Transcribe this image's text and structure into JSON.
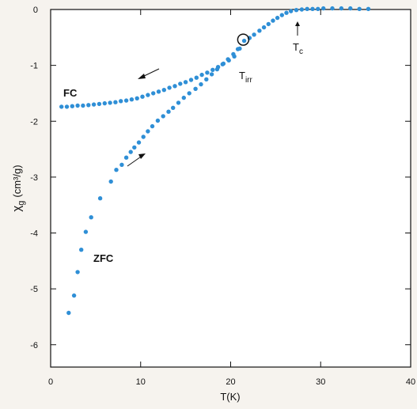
{
  "chart_data": {
    "type": "scatter",
    "title": "",
    "xlabel": "T(K)",
    "ylabel_main": "χ",
    "ylabel_sub": "g",
    "ylabel_unit": "(cm³/g)",
    "xlim": [
      0,
      40
    ],
    "ylim": [
      -6.4,
      0
    ],
    "x_ticks": [
      0,
      10,
      20,
      30,
      40
    ],
    "x_tick_labels": [
      "0",
      "10",
      "20",
      "30",
      "40"
    ],
    "y_ticks": [
      0,
      -1,
      -2,
      -3,
      -4,
      -5,
      -6
    ],
    "y_tick_labels": [
      "0",
      "-1",
      "-2",
      "-3",
      "-4",
      "-5",
      "-6"
    ],
    "marker_color": "#2f8fd6",
    "series": [
      {
        "name": "FC",
        "points": [
          [
            1.2,
            -1.74
          ],
          [
            1.8,
            -1.74
          ],
          [
            2.4,
            -1.73
          ],
          [
            3.0,
            -1.72
          ],
          [
            3.6,
            -1.72
          ],
          [
            4.2,
            -1.71
          ],
          [
            4.8,
            -1.7
          ],
          [
            5.4,
            -1.69
          ],
          [
            6.0,
            -1.68
          ],
          [
            6.6,
            -1.67
          ],
          [
            7.2,
            -1.66
          ],
          [
            7.8,
            -1.64
          ],
          [
            8.4,
            -1.63
          ],
          [
            9.0,
            -1.61
          ],
          [
            9.6,
            -1.59
          ],
          [
            10.2,
            -1.56
          ],
          [
            10.8,
            -1.53
          ],
          [
            11.4,
            -1.5
          ],
          [
            12.0,
            -1.47
          ],
          [
            12.6,
            -1.44
          ],
          [
            13.2,
            -1.4
          ],
          [
            13.8,
            -1.37
          ],
          [
            14.4,
            -1.33
          ],
          [
            15.0,
            -1.3
          ],
          [
            15.6,
            -1.26
          ],
          [
            16.2,
            -1.22
          ],
          [
            16.8,
            -1.17
          ],
          [
            17.4,
            -1.13
          ],
          [
            18.0,
            -1.08
          ],
          [
            18.6,
            -1.03
          ],
          [
            19.2,
            -0.97
          ],
          [
            19.8,
            -0.91
          ],
          [
            20.4,
            -0.84
          ],
          [
            21.0,
            -0.7
          ]
        ]
      },
      {
        "name": "ZFC",
        "points": [
          [
            2.0,
            -5.43
          ],
          [
            2.6,
            -5.12
          ],
          [
            3.0,
            -4.7
          ],
          [
            3.4,
            -4.3
          ],
          [
            3.9,
            -3.98
          ],
          [
            4.5,
            -3.72
          ],
          [
            5.5,
            -3.38
          ],
          [
            6.7,
            -3.08
          ],
          [
            7.3,
            -2.87
          ],
          [
            7.9,
            -2.78
          ],
          [
            8.4,
            -2.65
          ],
          [
            8.9,
            -2.55
          ],
          [
            9.3,
            -2.47
          ],
          [
            9.8,
            -2.38
          ],
          [
            10.3,
            -2.28
          ],
          [
            10.8,
            -2.18
          ],
          [
            11.3,
            -2.09
          ],
          [
            11.9,
            -1.99
          ],
          [
            12.5,
            -1.91
          ],
          [
            13.1,
            -1.83
          ],
          [
            13.6,
            -1.76
          ],
          [
            14.2,
            -1.67
          ],
          [
            14.8,
            -1.58
          ],
          [
            15.4,
            -1.5
          ],
          [
            16.1,
            -1.42
          ],
          [
            16.7,
            -1.34
          ],
          [
            17.3,
            -1.25
          ],
          [
            17.9,
            -1.16
          ],
          [
            18.5,
            -1.07
          ],
          [
            19.1,
            -0.98
          ],
          [
            19.7,
            -0.89
          ],
          [
            20.3,
            -0.8
          ],
          [
            20.8,
            -0.71
          ]
        ]
      },
      {
        "name": "",
        "points": [
          [
            21.5,
            -0.56
          ],
          [
            22.1,
            -0.51
          ],
          [
            22.6,
            -0.45
          ],
          [
            23.2,
            -0.38
          ],
          [
            23.7,
            -0.32
          ],
          [
            24.2,
            -0.26
          ],
          [
            24.7,
            -0.2
          ],
          [
            25.2,
            -0.15
          ],
          [
            25.7,
            -0.1
          ],
          [
            26.2,
            -0.06
          ],
          [
            26.7,
            -0.03
          ],
          [
            27.3,
            -0.01
          ],
          [
            27.9,
            0.0
          ],
          [
            28.5,
            0.01
          ],
          [
            29.1,
            0.01
          ],
          [
            29.7,
            0.01
          ],
          [
            30.3,
            0.02
          ],
          [
            31.3,
            0.02
          ],
          [
            32.3,
            0.02
          ],
          [
            33.3,
            0.02
          ],
          [
            34.3,
            0.01
          ],
          [
            35.3,
            0.01
          ]
        ]
      }
    ],
    "annotations": {
      "fc_label": "FC",
      "zfc_label": "ZFC",
      "tirr_main": "T",
      "tirr_sub": "irr",
      "tc_main": "T",
      "tc_sub": "c",
      "tirr_point": [
        21.4,
        -0.54
      ],
      "tc_x": 26.9
    }
  }
}
